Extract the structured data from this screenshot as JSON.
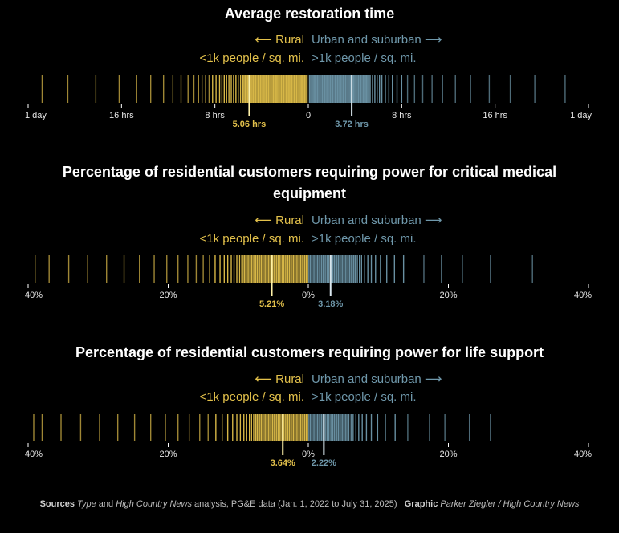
{
  "colors": {
    "rural": "#e3c14b",
    "rural_dim": "#9c8430",
    "urban": "#6f98ab",
    "urban_dim": "#3f5d6b",
    "median_rural": "#fff2a8",
    "median_urban": "#d9e7ee",
    "axis": "#ffffff"
  },
  "legend": {
    "rural_label": "⟵ Rural",
    "urban_label": "Urban and suburban ⟶",
    "rural_density": "<1k people / sq. mi.",
    "urban_density": ">1k people / sq. mi."
  },
  "chart_data": [
    {
      "type": "strip",
      "title": "Average restoration time",
      "unit": "hours",
      "axis_max": 24,
      "ticks": [
        {
          "value": -24,
          "label": "1 day"
        },
        {
          "value": -16,
          "label": "16 hrs"
        },
        {
          "value": -8,
          "label": "8 hrs"
        },
        {
          "value": 0,
          "label": "0"
        },
        {
          "value": 8,
          "label": "8 hrs"
        },
        {
          "value": 16,
          "label": "16 hrs"
        },
        {
          "value": 24,
          "label": "1 day"
        }
      ],
      "rural_median": 5.06,
      "rural_median_label": "5.06 hrs",
      "urban_median": 3.72,
      "urban_median_label": "3.72 hrs",
      "rural_values": [
        0.1,
        0.2,
        0.3,
        0.4,
        0.5,
        0.6,
        0.7,
        0.8,
        0.9,
        1.0,
        1.1,
        1.2,
        1.3,
        1.4,
        1.5,
        1.6,
        1.7,
        1.8,
        1.9,
        2.0,
        2.1,
        2.2,
        2.3,
        2.4,
        2.5,
        2.6,
        2.7,
        2.8,
        2.9,
        3.0,
        3.1,
        3.2,
        3.3,
        3.4,
        3.5,
        3.6,
        3.7,
        3.8,
        3.9,
        4.0,
        4.1,
        4.2,
        4.3,
        4.4,
        4.5,
        4.6,
        4.7,
        4.8,
        4.9,
        5.0,
        5.1,
        5.2,
        5.3,
        5.4,
        5.5,
        5.6,
        5.8,
        6.0,
        6.2,
        6.4,
        6.6,
        6.8,
        7.0,
        7.2,
        7.4,
        7.6,
        7.9,
        8.2,
        8.5,
        8.8,
        9.1,
        9.4,
        9.8,
        10.3,
        10.9,
        11.6,
        12.4,
        13.5,
        14.7,
        16.2,
        18.2,
        20.6,
        22.8
      ],
      "urban_values": [
        0.1,
        0.2,
        0.3,
        0.4,
        0.5,
        0.6,
        0.7,
        0.8,
        0.9,
        1.0,
        1.1,
        1.2,
        1.3,
        1.4,
        1.5,
        1.6,
        1.7,
        1.8,
        1.9,
        2.0,
        2.1,
        2.2,
        2.3,
        2.4,
        2.5,
        2.6,
        2.7,
        2.8,
        2.9,
        3.0,
        3.1,
        3.2,
        3.3,
        3.4,
        3.5,
        3.6,
        3.7,
        3.8,
        3.9,
        4.0,
        4.1,
        4.2,
        4.3,
        4.4,
        4.5,
        4.6,
        4.7,
        4.8,
        4.9,
        5.0,
        5.1,
        5.2,
        5.3,
        5.5,
        5.7,
        5.9,
        6.1,
        6.3,
        6.6,
        6.9,
        7.2,
        7.6,
        8.0,
        8.5,
        9.1,
        9.8,
        10.6,
        11.5,
        12.6,
        13.9,
        15.5,
        17.3,
        19.4,
        22.0
      ]
    },
    {
      "type": "strip",
      "title": "Percentage of residential customers requiring power for critical medical equipment",
      "unit": "percent",
      "axis_max": 40,
      "ticks": [
        {
          "value": -40,
          "label": "40%"
        },
        {
          "value": -20,
          "label": "20%"
        },
        {
          "value": 0,
          "label": "0%"
        },
        {
          "value": 20,
          "label": "20%"
        },
        {
          "value": 40,
          "label": "40%"
        }
      ],
      "rural_median": 5.21,
      "rural_median_label": "5.21%",
      "urban_median": 3.18,
      "urban_median_label": "3.18%",
      "rural_values": [
        0.1,
        0.3,
        0.5,
        0.7,
        0.9,
        1.1,
        1.3,
        1.5,
        1.7,
        1.9,
        2.1,
        2.3,
        2.5,
        2.7,
        2.9,
        3.1,
        3.3,
        3.5,
        3.7,
        3.9,
        4.1,
        4.3,
        4.5,
        4.7,
        4.9,
        5.1,
        5.3,
        5.5,
        5.7,
        5.9,
        6.1,
        6.3,
        6.5,
        6.7,
        6.9,
        7.1,
        7.3,
        7.5,
        7.7,
        7.9,
        8.1,
        8.3,
        8.5,
        8.7,
        8.9,
        9.1,
        9.3,
        9.5,
        9.8,
        10.2,
        10.6,
        11.0,
        11.5,
        12.0,
        12.6,
        13.3,
        14.1,
        15.0,
        16.0,
        17.2,
        18.6,
        20.2,
        22.0,
        24.1,
        26.3,
        28.8,
        31.5,
        34.2,
        37.0,
        39.0
      ],
      "urban_values": [
        0.1,
        0.3,
        0.5,
        0.7,
        0.9,
        1.1,
        1.3,
        1.5,
        1.7,
        1.9,
        2.1,
        2.3,
        2.5,
        2.7,
        2.9,
        3.1,
        3.3,
        3.5,
        3.7,
        3.9,
        4.1,
        4.3,
        4.5,
        4.7,
        4.9,
        5.1,
        5.3,
        5.5,
        5.7,
        5.9,
        6.1,
        6.3,
        6.5,
        6.7,
        7.0,
        7.3,
        7.6,
        8.0,
        8.5,
        9.0,
        9.6,
        10.3,
        11.2,
        12.3,
        13.6,
        16.5,
        19.0,
        22.0,
        26.0,
        32.0
      ]
    },
    {
      "type": "strip",
      "title": "Percentage of residential customers requiring power for life support",
      "unit": "percent",
      "axis_max": 40,
      "ticks": [
        {
          "value": -40,
          "label": "40%"
        },
        {
          "value": -20,
          "label": "20%"
        },
        {
          "value": 0,
          "label": "0%"
        },
        {
          "value": 20,
          "label": "20%"
        },
        {
          "value": 40,
          "label": "40%"
        }
      ],
      "rural_median": 3.64,
      "rural_median_label": "3.64%",
      "urban_median": 2.22,
      "urban_median_label": "2.22%",
      "rural_values": [
        0.1,
        0.3,
        0.5,
        0.7,
        0.9,
        1.1,
        1.3,
        1.5,
        1.7,
        1.9,
        2.1,
        2.3,
        2.5,
        2.7,
        2.9,
        3.1,
        3.3,
        3.5,
        3.7,
        3.9,
        4.1,
        4.3,
        4.5,
        4.7,
        4.9,
        5.1,
        5.3,
        5.5,
        5.7,
        5.9,
        6.1,
        6.3,
        6.5,
        6.7,
        6.9,
        7.1,
        7.3,
        7.5,
        7.8,
        8.1,
        8.4,
        8.8,
        9.2,
        9.7,
        10.2,
        10.8,
        11.5,
        12.3,
        13.2,
        14.3,
        15.5,
        17.0,
        18.6,
        20.4,
        22.5,
        24.8,
        27.2,
        29.8,
        32.5,
        35.3,
        38.0,
        39.2
      ],
      "urban_values": [
        0.1,
        0.3,
        0.5,
        0.7,
        0.9,
        1.1,
        1.3,
        1.5,
        1.7,
        1.9,
        2.1,
        2.3,
        2.5,
        2.7,
        2.9,
        3.1,
        3.3,
        3.5,
        3.7,
        3.9,
        4.1,
        4.3,
        4.5,
        4.7,
        4.9,
        5.1,
        5.3,
        5.5,
        5.8,
        6.1,
        6.4,
        6.8,
        7.2,
        7.7,
        8.3,
        9.0,
        9.9,
        11.0,
        12.4,
        14.2,
        17.3,
        19.5,
        23.0,
        26.0
      ]
    }
  ],
  "footer": {
    "sources_label": "Sources",
    "sources_type": "Type",
    "sources_and": "and",
    "sources_hcn": "High Country News",
    "sources_rest": "analysis, PG&E data (Jan. 1, 2022 to July 31, 2025)",
    "graphic_label": "Graphic",
    "graphic_credit": "Parker Ziegler / High Country News"
  }
}
